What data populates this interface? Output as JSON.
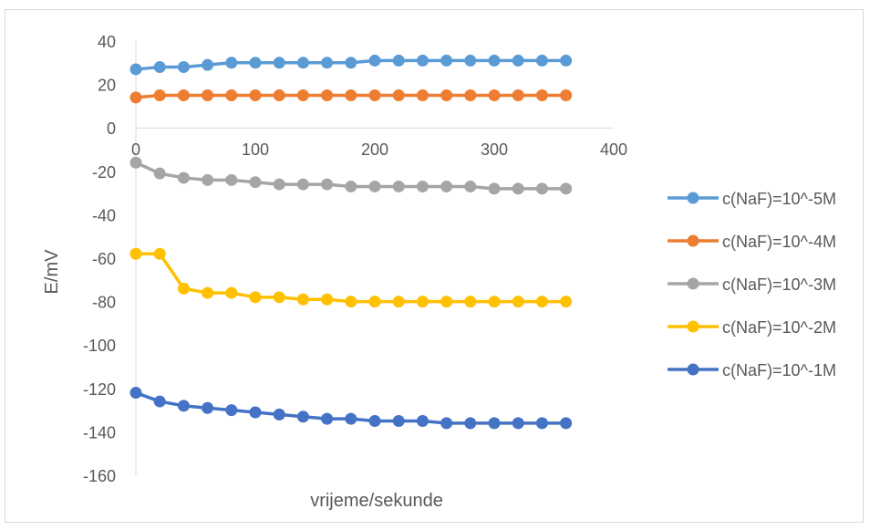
{
  "chart_data": {
    "type": "line",
    "title": "",
    "xlabel": "vrijeme/sekunde",
    "ylabel": "E/mV",
    "xlim": [
      0,
      400
    ],
    "ylim": [
      -160,
      40
    ],
    "x_ticks": [
      0,
      100,
      200,
      300,
      400
    ],
    "y_ticks": [
      40,
      20,
      0,
      -20,
      -40,
      -60,
      -80,
      -100,
      -120,
      -140,
      -160
    ],
    "grid": false,
    "legend_position": "right",
    "x": [
      0,
      20,
      40,
      60,
      80,
      100,
      120,
      140,
      160,
      180,
      200,
      220,
      240,
      260,
      280,
      300,
      320,
      340,
      360
    ],
    "series": [
      {
        "name": "c(NaF)=10^-5M",
        "color": "#5B9BD5",
        "values": [
          27,
          28,
          28,
          29,
          30,
          30,
          30,
          30,
          30,
          30,
          31,
          31,
          31,
          31,
          31,
          31,
          31,
          31,
          31
        ]
      },
      {
        "name": "c(NaF)=10^-4M",
        "color": "#ED7D31",
        "values": [
          14,
          15,
          15,
          15,
          15,
          15,
          15,
          15,
          15,
          15,
          15,
          15,
          15,
          15,
          15,
          15,
          15,
          15,
          15
        ]
      },
      {
        "name": "c(NaF)=10^-3M",
        "color": "#A5A5A5",
        "values": [
          -16,
          -21,
          -23,
          -24,
          -24,
          -25,
          -26,
          -26,
          -26,
          -27,
          -27,
          -27,
          -27,
          -27,
          -27,
          -28,
          -28,
          -28,
          -28
        ]
      },
      {
        "name": "c(NaF)=10^-2M",
        "color": "#FFC000",
        "values": [
          -58,
          -58,
          -74,
          -76,
          -76,
          -78,
          -78,
          -79,
          -79,
          -80,
          -80,
          -80,
          -80,
          -80,
          -80,
          -80,
          -80,
          -80,
          -80
        ]
      },
      {
        "name": "c(NaF)=10^-1M",
        "color": "#4472C4",
        "values": [
          -122,
          -126,
          -128,
          -129,
          -130,
          -131,
          -132,
          -133,
          -134,
          -134,
          -135,
          -135,
          -135,
          -136,
          -136,
          -136,
          -136,
          -136,
          -136
        ]
      }
    ]
  }
}
